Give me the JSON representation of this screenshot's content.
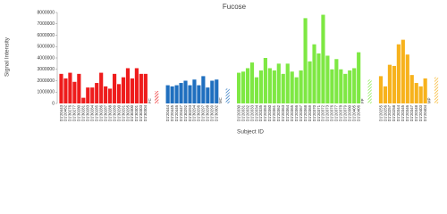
{
  "chart_data": {
    "type": "bar",
    "title": "Fucose",
    "y_label": "Signal Intensity",
    "x_label": "Subject ID",
    "ylim": [
      0,
      8000000
    ],
    "yticks": [
      0,
      1000000,
      2000000,
      3000000,
      4000000,
      5000000,
      6000000,
      7000000,
      8000000
    ],
    "groups": [
      {
        "color": "#ee1c1c",
        "categories": [
          "D1'20443",
          "D1'20462",
          "D1'30276",
          "D1'30277",
          "D1'30280",
          "D1'30281",
          "D1'30283",
          "D1'30284",
          "D1'30285",
          "D1'30286",
          "D1'30287",
          "D1'30288",
          "D1'30289",
          "D1'30290",
          "D1'30291",
          "D1'30295",
          "D1'30300",
          "D1'30301",
          "D1'30303",
          "D1'30304"
        ],
        "values": [
          2600000,
          2200000,
          2700000,
          1900000,
          2600000,
          500000,
          1400000,
          1400000,
          1800000,
          2700000,
          1500000,
          1300000,
          2600000,
          1700000,
          2300000,
          3100000,
          2200000,
          3100000,
          2600000,
          2600000
        ],
        "control": {
          "label": "FC",
          "value": 1100000
        }
      },
      {
        "color": "#1f6fbf",
        "categories": [
          "D1'20444",
          "D1'20445",
          "D1'20446",
          "D1'20447",
          "D1'30292",
          "D1'30293",
          "D1'30294",
          "D1'30296",
          "D1'30297",
          "D1'30298",
          "D1'30299",
          "D1'30302"
        ],
        "values": [
          1600000,
          1500000,
          1600000,
          1800000,
          2000000,
          1600000,
          2100000,
          1600000,
          2400000,
          1400000,
          2000000,
          2100000
        ],
        "control": {
          "label": "MC",
          "value": 1300000
        }
      },
      {
        "color": "#7ee843",
        "categories": [
          "D1'20330",
          "D1'20331",
          "D1'20332",
          "D1'20333",
          "D1'20334",
          "D1'20335",
          "D1'20359",
          "D1'20360",
          "D1'20361",
          "D1'20362",
          "D1'20363",
          "D1'20364",
          "D1'20365",
          "D1'20366",
          "D1'20367",
          "D1'20368",
          "D1'20369",
          "D1'20370",
          "D1'20371",
          "D1'20372",
          "D1'20373",
          "D1'20376",
          "D1'20377",
          "D1'20378",
          "D1'20379",
          "D1'20380",
          "D1'20405",
          "D1'20406"
        ],
        "values": [
          2700000,
          2800000,
          3100000,
          3600000,
          2300000,
          2900000,
          4000000,
          3100000,
          2900000,
          3500000,
          2600000,
          3500000,
          2800000,
          2300000,
          2900000,
          7500000,
          3700000,
          5200000,
          4400000,
          7800000,
          4200000,
          3000000,
          3900000,
          3000000,
          2600000,
          2900000,
          3100000,
          4500000
        ],
        "control": {
          "label": "FP",
          "value": 2100000
        }
      },
      {
        "color": "#f7b21c",
        "categories": [
          "D1'20255",
          "D1'20256",
          "D1'20257",
          "D1'20258",
          "D1'20344",
          "D1'20345",
          "D1'20346",
          "D1'20347",
          "D1'20348",
          "D1'20403",
          "D1'20404"
        ],
        "values": [
          2400000,
          1500000,
          3400000,
          3300000,
          5200000,
          5600000,
          4300000,
          2500000,
          1800000,
          1500000,
          2200000
        ],
        "control": {
          "label": "MP",
          "value": 2300000
        }
      }
    ]
  }
}
